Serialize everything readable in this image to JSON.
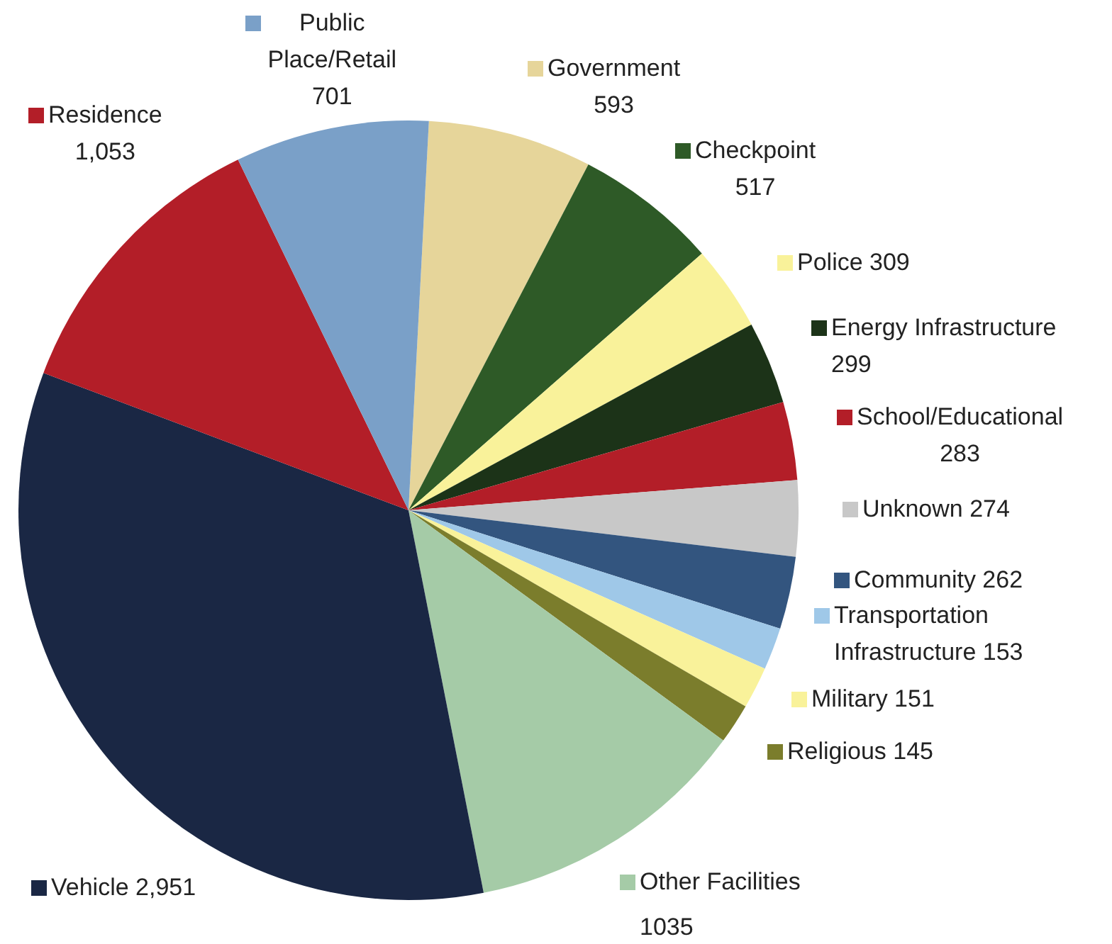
{
  "chart_data": {
    "type": "pie",
    "legend": "right",
    "categories": [
      "Government",
      "Checkpoint",
      "Police",
      "Energy Infrastructure",
      "School/Educational",
      "Unknown",
      "Community",
      "Transportation Infrastructure",
      "Military",
      "Religious",
      "Other Facilities",
      "Vehicle",
      "Residence",
      "Public Place/Retail"
    ],
    "values": [
      593,
      517,
      309,
      299,
      283,
      274,
      262,
      153,
      151,
      145,
      1035,
      2951,
      1053,
      701
    ],
    "value_labels": [
      "593",
      "517",
      "309",
      "299",
      "283",
      "274",
      "262",
      "153",
      "151",
      "145",
      "1035",
      "2,951",
      "1,053",
      "701"
    ],
    "colors": [
      "#e6d59a",
      "#2e5a27",
      "#f9f29a",
      "#1c3318",
      "#b31e28",
      "#c8c8c8",
      "#33557f",
      "#9fc8e8",
      "#f9f29a",
      "#7b7d2c",
      "#a5cba7",
      "#1a2744",
      "#b31e28",
      "#7aa0c8"
    ]
  }
}
